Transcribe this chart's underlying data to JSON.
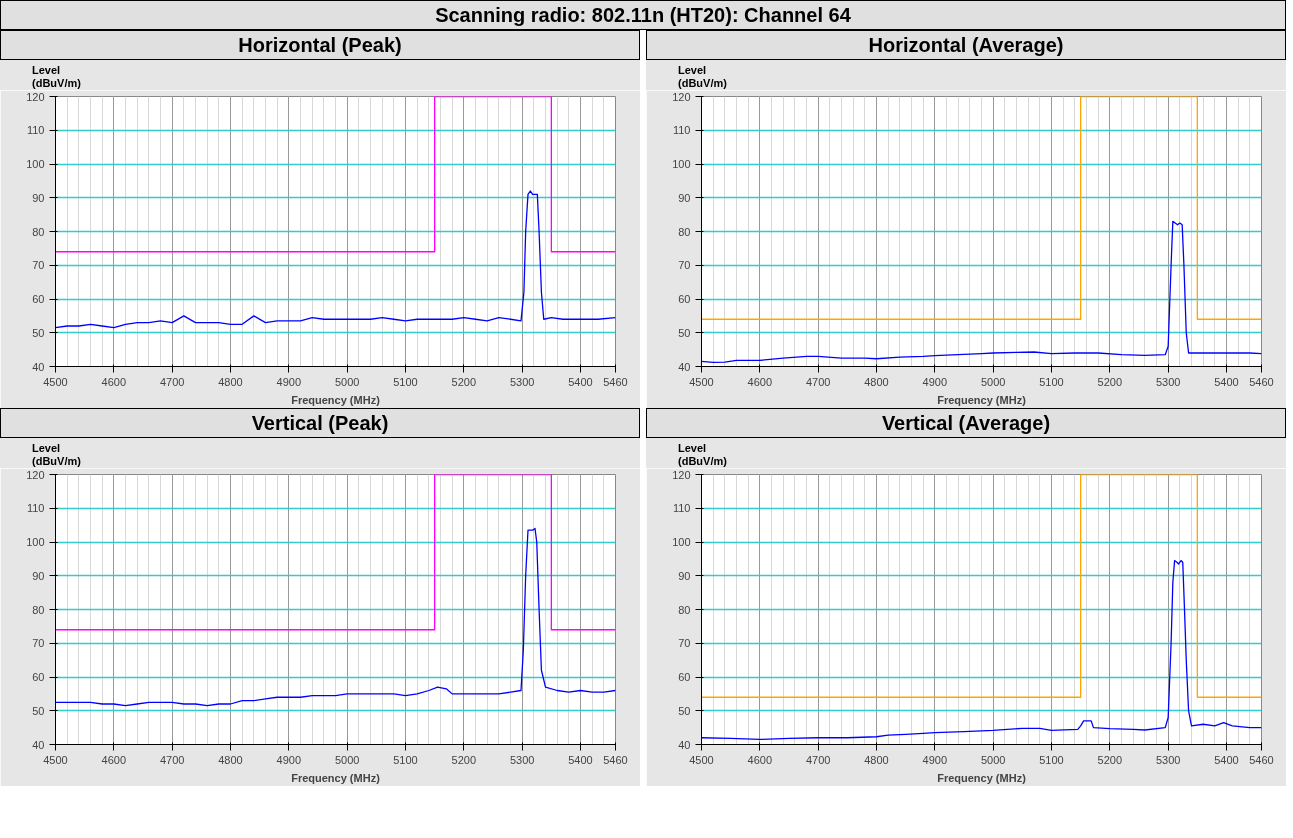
{
  "chart_data": [
    {
      "type": "line",
      "title": "Horizontal (Peak)",
      "annotations": [
        "Scanning radio: 802.11n (HT20): Channel 64"
      ],
      "xlabel": "Frequency (MHz)",
      "ylabel": "Level (dBuV/m)",
      "xlim": [
        4500,
        5460
      ],
      "ylim": [
        40,
        120
      ],
      "xticks": [
        4500,
        4600,
        4700,
        4800,
        4900,
        5000,
        5100,
        5200,
        5300,
        5400,
        5460
      ],
      "yticks": [
        40,
        50,
        60,
        70,
        80,
        90,
        100,
        110,
        120
      ],
      "grid": true,
      "marker": "none",
      "series": [
        {
          "color": "#0000ff",
          "x": [
            4500,
            4520,
            4540,
            4560,
            4580,
            4600,
            4620,
            4640,
            4660,
            4680,
            4700,
            4720,
            4740,
            4760,
            4780,
            4800,
            4820,
            4840,
            4860,
            4880,
            4900,
            4920,
            4940,
            4960,
            4980,
            5000,
            5020,
            5040,
            5060,
            5080,
            5100,
            5120,
            5140,
            5160,
            5180,
            5200,
            5220,
            5240,
            5260,
            5280,
            5298,
            5303,
            5306,
            5310,
            5314,
            5318,
            5322,
            5326,
            5329,
            5333,
            5337,
            5350,
            5370,
            5390,
            5410,
            5430,
            5460
          ],
          "values": [
            51.5,
            52,
            52,
            52.5,
            52,
            51.5,
            52.5,
            53,
            53,
            53.5,
            53,
            55,
            53,
            53,
            53,
            52.5,
            52.5,
            55,
            53,
            53.5,
            53.5,
            53.5,
            54.5,
            54,
            54,
            54,
            54,
            54,
            54.5,
            54,
            53.5,
            54,
            54,
            54,
            54,
            54.5,
            54,
            53.5,
            54.5,
            54,
            53.5,
            62,
            80,
            91,
            92,
            91,
            91,
            91,
            80,
            62,
            54,
            54.5,
            54,
            54,
            54,
            54,
            54.5
          ]
        },
        {
          "color": "#ff00ff",
          "x": [
            4500,
            5150,
            5150,
            5350,
            5350,
            5460
          ],
          "values": [
            74,
            74,
            120,
            120,
            74,
            74
          ]
        }
      ]
    },
    {
      "type": "line",
      "title": "Horizontal (Average)",
      "xlabel": "Frequency (MHz)",
      "ylabel": "Level (dBuV/m)",
      "xlim": [
        4500,
        5460
      ],
      "ylim": [
        40,
        120
      ],
      "xticks": [
        4500,
        4600,
        4700,
        4800,
        4900,
        5000,
        5100,
        5200,
        5300,
        5400,
        5460
      ],
      "yticks": [
        40,
        50,
        60,
        70,
        80,
        90,
        100,
        110,
        120
      ],
      "grid": true,
      "marker": "none",
      "series": [
        {
          "color": "#0000ff",
          "x": [
            4500,
            4520,
            4540,
            4560,
            4600,
            4640,
            4680,
            4700,
            4740,
            4780,
            4800,
            4840,
            4880,
            4900,
            4940,
            4980,
            5000,
            5040,
            5070,
            5100,
            5140,
            5180,
            5220,
            5260,
            5295,
            5300,
            5305,
            5308,
            5312,
            5316,
            5320,
            5324,
            5327,
            5331,
            5335,
            5360,
            5400,
            5440,
            5460
          ],
          "values": [
            41.5,
            41.2,
            41.3,
            41.8,
            41.8,
            42.5,
            43,
            43,
            42.5,
            42.5,
            42.3,
            42.8,
            43,
            43.2,
            43.5,
            43.8,
            44,
            44.2,
            44.3,
            43.8,
            44,
            44,
            43.5,
            43.3,
            43.5,
            46,
            70,
            83,
            82.5,
            82,
            82.5,
            82,
            70,
            50,
            44,
            44,
            44,
            44,
            43.8
          ]
        },
        {
          "color": "#ffa500",
          "x": [
            4500,
            5150,
            5150,
            5350,
            5350,
            5460
          ],
          "values": [
            54,
            54,
            120,
            120,
            54,
            54
          ]
        }
      ]
    },
    {
      "type": "line",
      "title": "Vertical (Peak)",
      "xlabel": "Frequency (MHz)",
      "ylabel": "Level (dBuV/m)",
      "xlim": [
        4500,
        5460
      ],
      "ylim": [
        40,
        120
      ],
      "xticks": [
        4500,
        4600,
        4700,
        4800,
        4900,
        5000,
        5100,
        5200,
        5300,
        5400,
        5460
      ],
      "yticks": [
        40,
        50,
        60,
        70,
        80,
        90,
        100,
        110,
        120
      ],
      "grid": true,
      "marker": "none",
      "series": [
        {
          "color": "#0000ff",
          "x": [
            4500,
            4520,
            4540,
            4560,
            4580,
            4600,
            4620,
            4640,
            4660,
            4680,
            4700,
            4720,
            4740,
            4760,
            4780,
            4800,
            4820,
            4840,
            4860,
            4880,
            4900,
            4920,
            4940,
            4960,
            4980,
            5000,
            5020,
            5040,
            5060,
            5080,
            5100,
            5120,
            5140,
            5155,
            5170,
            5180,
            5200,
            5220,
            5240,
            5260,
            5280,
            5298,
            5302,
            5306,
            5310,
            5314,
            5318,
            5322,
            5325,
            5329,
            5333,
            5340,
            5360,
            5380,
            5400,
            5420,
            5440,
            5460
          ],
          "values": [
            52.5,
            52.5,
            52.5,
            52.5,
            52,
            52,
            51.5,
            52,
            52.5,
            52.5,
            52.5,
            52,
            52,
            51.5,
            52,
            52,
            53,
            53,
            53.5,
            54,
            54,
            54,
            54.5,
            54.5,
            54.5,
            55,
            55,
            55,
            55,
            55,
            54.5,
            55,
            56,
            57,
            56.5,
            55,
            55,
            55,
            55,
            55,
            55.5,
            56,
            68,
            90,
            103.5,
            103.5,
            103.5,
            104,
            100,
            80,
            62,
            57,
            56,
            55.5,
            56,
            55.5,
            55.5,
            56
          ]
        },
        {
          "color": "#ff00ff",
          "x": [
            4500,
            5150,
            5150,
            5350,
            5350,
            5460
          ],
          "values": [
            74,
            74,
            120,
            120,
            74,
            74
          ]
        }
      ]
    },
    {
      "type": "line",
      "title": "Vertical (Average)",
      "xlabel": "Frequency (MHz)",
      "ylabel": "Level (dBuV/m)",
      "xlim": [
        4500,
        5460
      ],
      "ylim": [
        40,
        120
      ],
      "xticks": [
        4500,
        4600,
        4700,
        4800,
        4900,
        5000,
        5100,
        5200,
        5300,
        5400,
        5460
      ],
      "yticks": [
        40,
        50,
        60,
        70,
        80,
        90,
        100,
        110,
        120
      ],
      "grid": true,
      "marker": "none",
      "series": [
        {
          "color": "#0000ff",
          "x": [
            4500,
            4550,
            4600,
            4650,
            4700,
            4750,
            4800,
            4820,
            4850,
            4880,
            4900,
            4950,
            5000,
            5050,
            5080,
            5100,
            5145,
            5150,
            5155,
            5168,
            5172,
            5200,
            5240,
            5260,
            5295,
            5300,
            5305,
            5308,
            5311,
            5315,
            5318,
            5322,
            5325,
            5328,
            5331,
            5335,
            5340,
            5360,
            5380,
            5395,
            5410,
            5440,
            5460
          ],
          "values": [
            42,
            41.8,
            41.5,
            41.8,
            42,
            42,
            42.3,
            42.8,
            43,
            43.3,
            43.5,
            43.8,
            44.2,
            44.8,
            44.8,
            44.2,
            44.5,
            45.5,
            47,
            47,
            45,
            44.7,
            44.5,
            44.3,
            45,
            48,
            70,
            88,
            94.5,
            94,
            93.5,
            94.5,
            94,
            80,
            65,
            50,
            45.5,
            46,
            45.5,
            46.5,
            45.5,
            45,
            45
          ]
        },
        {
          "color": "#ffa500",
          "x": [
            4500,
            5150,
            5150,
            5350,
            5350,
            5460
          ],
          "values": [
            54,
            54,
            120,
            120,
            54,
            54
          ]
        }
      ]
    }
  ]
}
